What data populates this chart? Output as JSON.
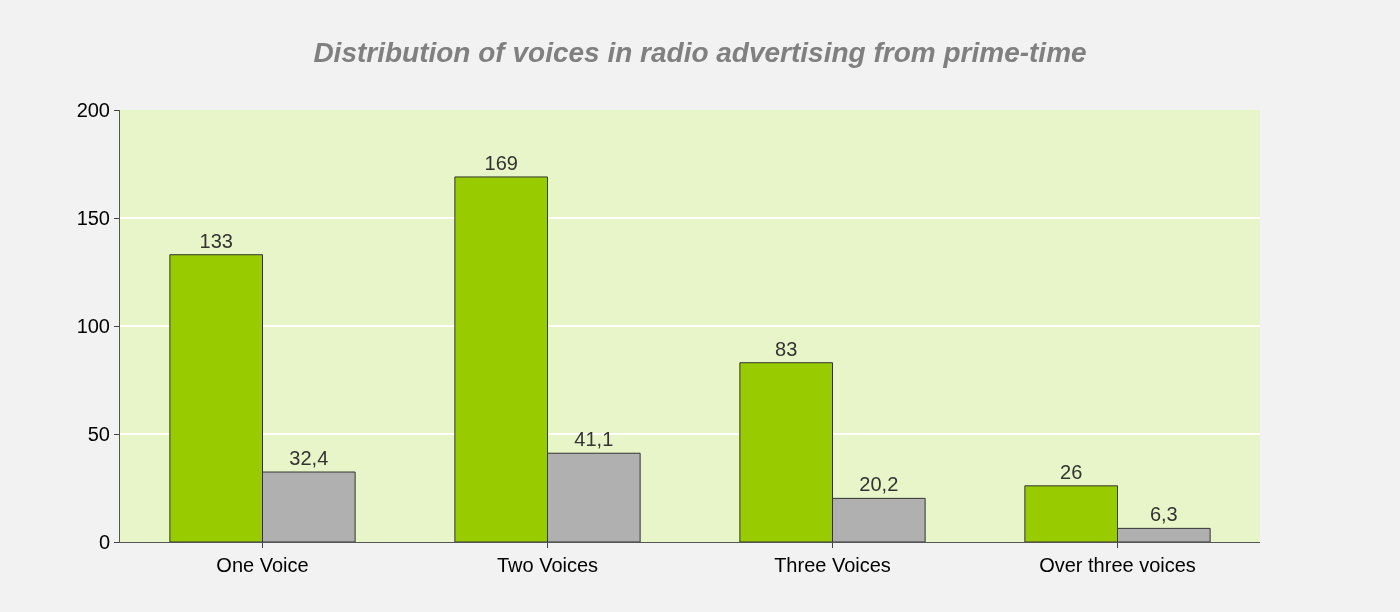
{
  "chart_data": {
    "type": "bar",
    "title": "Distribution of voices in radio advertising from prime-time",
    "categories": [
      "One Voice",
      "Two Voices",
      "Three Voices",
      "Over three voices"
    ],
    "series": [
      {
        "color": "#99cc00",
        "values": [
          133,
          169,
          83,
          26
        ],
        "value_labels": [
          "133",
          "169",
          "83",
          "26"
        ]
      },
      {
        "color": "#b0b0b0",
        "values": [
          32.4,
          41.1,
          20.2,
          6.3
        ],
        "value_labels": [
          "32,4",
          "41,1",
          "20,2",
          "6,3"
        ]
      }
    ],
    "ylim": [
      0,
      200
    ],
    "yticks": [
      0,
      50,
      100,
      150,
      200
    ],
    "grid": "y"
  }
}
